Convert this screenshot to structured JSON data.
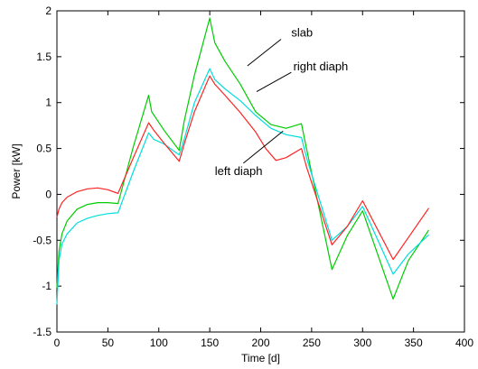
{
  "chart_data": {
    "type": "line",
    "title": "",
    "xlabel": "Time [d]",
    "ylabel": "Power [kW]",
    "xlim": [
      0,
      400
    ],
    "ylim": [
      -1.5,
      2
    ],
    "xticks": [
      0,
      50,
      100,
      150,
      200,
      250,
      300,
      350,
      400
    ],
    "yticks": [
      -1.5,
      -1,
      -0.5,
      0,
      0.5,
      1,
      1.5,
      2
    ],
    "xtick_labels": [
      "0",
      "50",
      "100",
      "150",
      "200",
      "250",
      "300",
      "350",
      "400"
    ],
    "ytick_labels": [
      "-1.5",
      "-1",
      "-0.5",
      "0",
      "0.5",
      "1",
      "1.5",
      "2"
    ],
    "grid": false,
    "legend": "none",
    "series": [
      {
        "name": "slab",
        "color": "#00cc00",
        "x": [
          0,
          2,
          5,
          10,
          20,
          30,
          40,
          50,
          60,
          75,
          90,
          93,
          105,
          120,
          125,
          135,
          150,
          155,
          165,
          180,
          195,
          210,
          225,
          240,
          245,
          270,
          285,
          300,
          330,
          345,
          365
        ],
        "y": [
          -1.02,
          -0.62,
          -0.43,
          -0.29,
          -0.16,
          -0.11,
          -0.09,
          -0.09,
          -0.1,
          0.52,
          1.08,
          0.9,
          0.7,
          0.48,
          0.8,
          1.3,
          1.92,
          1.65,
          1.45,
          1.2,
          0.9,
          0.76,
          0.72,
          0.77,
          0.5,
          -0.82,
          -0.45,
          -0.18,
          -1.14,
          -0.72,
          -0.39
        ]
      },
      {
        "name": "right diaph",
        "color": "#00dddd",
        "x": [
          0,
          2,
          5,
          10,
          20,
          30,
          40,
          50,
          60,
          75,
          90,
          95,
          105,
          120,
          125,
          135,
          150,
          155,
          165,
          180,
          195,
          210,
          225,
          240,
          245,
          270,
          285,
          300,
          330,
          345,
          365
        ],
        "y": [
          -1.2,
          -0.72,
          -0.54,
          -0.43,
          -0.31,
          -0.26,
          -0.23,
          -0.21,
          -0.2,
          0.25,
          0.67,
          0.6,
          0.55,
          0.43,
          0.6,
          1.0,
          1.37,
          1.25,
          1.15,
          1.02,
          0.86,
          0.72,
          0.65,
          0.62,
          0.4,
          -0.5,
          -0.35,
          -0.13,
          -0.87,
          -0.65,
          -0.44
        ]
      },
      {
        "name": "left diaph",
        "color": "#ff2222",
        "x": [
          0,
          2,
          5,
          10,
          20,
          30,
          40,
          50,
          60,
          75,
          90,
          95,
          105,
          120,
          125,
          135,
          150,
          155,
          165,
          180,
          195,
          205,
          215,
          225,
          240,
          245,
          270,
          285,
          300,
          330,
          345,
          365
        ],
        "y": [
          -0.25,
          -0.16,
          -0.09,
          -0.03,
          0.03,
          0.06,
          0.07,
          0.05,
          0.01,
          0.4,
          0.78,
          0.7,
          0.56,
          0.36,
          0.55,
          0.9,
          1.29,
          1.2,
          1.08,
          0.89,
          0.68,
          0.5,
          0.37,
          0.4,
          0.5,
          0.3,
          -0.55,
          -0.35,
          -0.07,
          -0.71,
          -0.47,
          -0.15
        ]
      }
    ],
    "annotations": [
      {
        "text": "slab",
        "x": 230,
        "y": 1.72,
        "ptr_from": [
          220,
          1.69
        ],
        "ptr_to": [
          187,
          1.4
        ]
      },
      {
        "text": "right diaph",
        "x": 232,
        "y": 1.35,
        "ptr_from": [
          230,
          1.33
        ],
        "ptr_to": [
          196,
          1.12
        ]
      },
      {
        "text": "left diaph",
        "x": 155,
        "y": 0.21,
        "ptr_from": [
          183,
          0.34
        ],
        "ptr_to": [
          222,
          0.69
        ]
      }
    ]
  }
}
